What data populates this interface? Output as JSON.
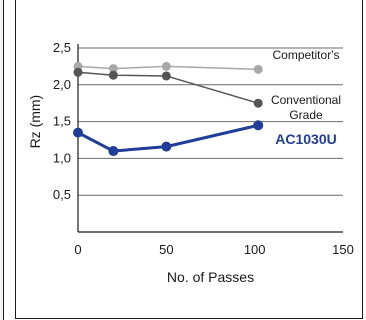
{
  "chart_data": {
    "type": "line",
    "xlabel": "No. of Passes",
    "ylabel": "Rz (mm)",
    "xlim": [
      0,
      150
    ],
    "ylim": [
      0,
      2.5
    ],
    "xticks": [
      0,
      50,
      100,
      150
    ],
    "yticks": [
      0.5,
      1.0,
      1.5,
      2.0,
      2.5
    ],
    "xtick_labels": [
      "0",
      "50",
      "100",
      "150"
    ],
    "ytick_labels": [
      "0,5",
      "1,0",
      "1,5",
      "2,0",
      "2,5"
    ],
    "grid": "horizontal",
    "series": [
      {
        "name": "Competitor's",
        "color": "#a8a8a8",
        "x": [
          0,
          20,
          50,
          102
        ],
        "values": [
          2.25,
          2.22,
          2.25,
          2.21
        ]
      },
      {
        "name": "Conventional Grade",
        "label_lines": [
          "Conventional",
          "Grade"
        ],
        "color": "#555555",
        "x": [
          0,
          20,
          50,
          102
        ],
        "values": [
          2.17,
          2.13,
          2.12,
          1.75
        ]
      },
      {
        "name": "AC1030U",
        "color": "#1f3d99",
        "x": [
          0,
          20,
          50,
          102
        ],
        "values": [
          1.35,
          1.1,
          1.16,
          1.45
        ]
      }
    ]
  }
}
